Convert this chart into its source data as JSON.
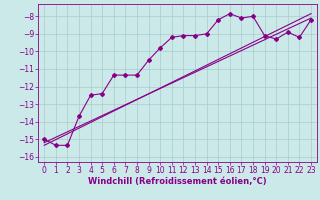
{
  "bg_color": "#cbe9e9",
  "grid_color": "#aacccc",
  "line_color": "#880088",
  "marker_color": "#880088",
  "xlabel": "Windchill (Refroidissement éolien,°C)",
  "xlabel_fontsize": 6.0,
  "tick_fontsize": 5.5,
  "xlim": [
    -0.5,
    23.5
  ],
  "ylim": [
    -16.3,
    -7.3
  ],
  "yticks": [
    -16,
    -15,
    -14,
    -13,
    -12,
    -11,
    -10,
    -9,
    -8
  ],
  "xticks": [
    0,
    1,
    2,
    3,
    4,
    5,
    6,
    7,
    8,
    9,
    10,
    11,
    12,
    13,
    14,
    15,
    16,
    17,
    18,
    19,
    20,
    21,
    22,
    23
  ],
  "series1": {
    "x": [
      0,
      1,
      2,
      3,
      4,
      5,
      6,
      7,
      8,
      9,
      10,
      11,
      12,
      13,
      14,
      15,
      16,
      17,
      18,
      19,
      20,
      21,
      22,
      23
    ],
    "y": [
      -15.0,
      -15.35,
      -15.35,
      -13.7,
      -12.5,
      -12.4,
      -11.35,
      -11.35,
      -11.35,
      -10.5,
      -9.8,
      -9.2,
      -9.1,
      -9.1,
      -9.0,
      -8.2,
      -7.85,
      -8.1,
      -8.0,
      -9.1,
      -9.3,
      -8.9,
      -9.2,
      -8.2
    ]
  },
  "series2": {
    "x": [
      0,
      23
    ],
    "y": [
      -15.2,
      -8.1
    ]
  },
  "series3": {
    "x": [
      0,
      23
    ],
    "y": [
      -15.35,
      -7.85
    ]
  }
}
